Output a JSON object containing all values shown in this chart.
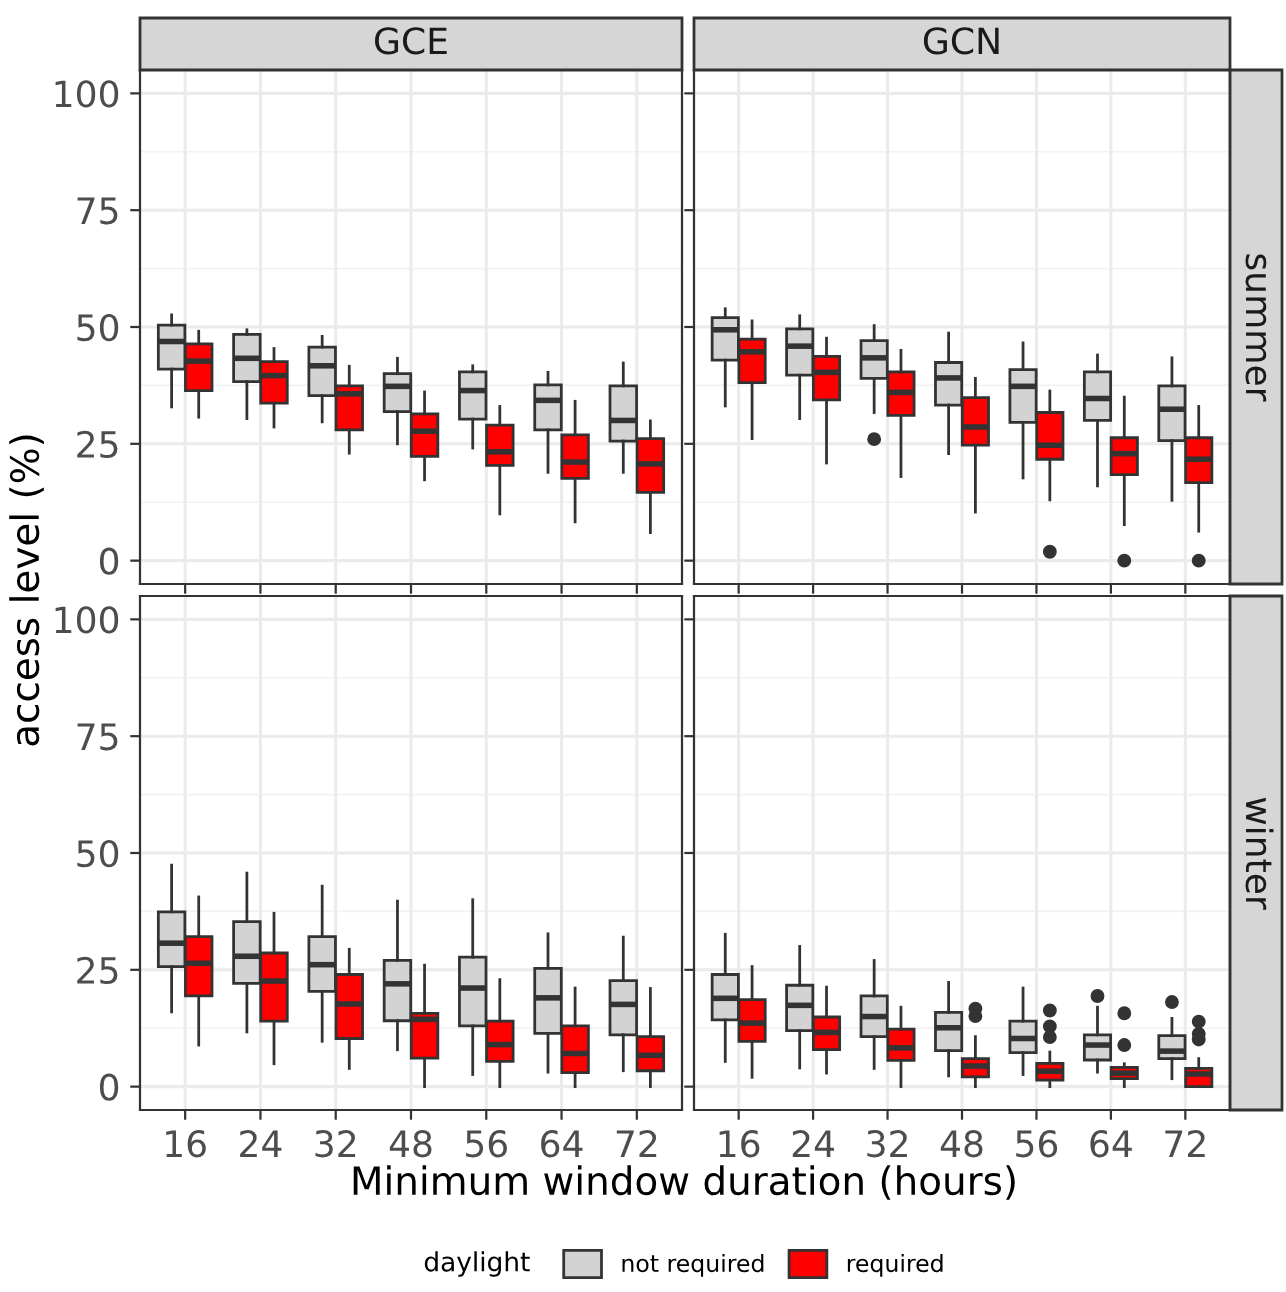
{
  "chart_data": [
    {
      "type": "box",
      "title": "GCE",
      "ylabel": "access level (%)",
      "legend_title": "daylight",
      "legend": "bottom",
      "categories": [
        "16",
        "24",
        "32",
        "48",
        "56",
        "64",
        "72"
      ],
      "ylim": [
        -5,
        105
      ],
      "yticks": [
        0,
        25,
        50,
        75,
        100
      ],
      "grid": true,
      "tick_labels": "y",
      "series": [
        {
          "name": "not required",
          "color": "#d3d3d3",
          "boxes": [
            {
              "low": 32.9,
              "q1": 41,
              "median": 46.9,
              "q3": 50.4,
              "high": 52.6
            },
            {
              "low": 30.4,
              "q1": 38.3,
              "median": 43.3,
              "q3": 48.4,
              "high": 49.4
            },
            {
              "low": 29.7,
              "q1": 35.3,
              "median": 41.7,
              "q3": 45.7,
              "high": 48
            },
            {
              "low": 25,
              "q1": 31.9,
              "median": 37.3,
              "q3": 40,
              "high": 43.3
            },
            {
              "low": 24.1,
              "q1": 30.3,
              "median": 36.4,
              "q3": 40.4,
              "high": 41.7
            },
            {
              "low": 18.9,
              "q1": 28,
              "median": 34.3,
              "q3": 37.6,
              "high": 40.3
            },
            {
              "low": 18.9,
              "q1": 25.6,
              "median": 30,
              "q3": 37.4,
              "high": 42.3
            }
          ]
        },
        {
          "name": "required",
          "color": "#ff0000",
          "boxes": [
            {
              "low": 30.7,
              "q1": 36.4,
              "median": 42.7,
              "q3": 46.4,
              "high": 49.1
            },
            {
              "low": 28.6,
              "q1": 33.7,
              "median": 39.6,
              "q3": 42.6,
              "high": 45.4
            },
            {
              "low": 23,
              "q1": 28,
              "median": 35.7,
              "q3": 37.4,
              "high": 41.6
            },
            {
              "low": 17.3,
              "q1": 22.3,
              "median": 27.7,
              "q3": 31.4,
              "high": 36.1
            },
            {
              "low": 10,
              "q1": 20.4,
              "median": 23.3,
              "q3": 29,
              "high": 33
            },
            {
              "low": 8.3,
              "q1": 17.6,
              "median": 21.1,
              "q3": 26.9,
              "high": 34.1
            },
            {
              "low": 6,
              "q1": 14.6,
              "median": 20.7,
              "q3": 26.1,
              "high": 29.9
            }
          ]
        }
      ]
    },
    {
      "type": "box",
      "title": "GCN",
      "y2label": "summer",
      "categories": [
        "16",
        "24",
        "32",
        "48",
        "56",
        "64",
        "72"
      ],
      "ylim": [
        -5,
        105
      ],
      "yticks": [
        0,
        25,
        50,
        75,
        100
      ],
      "grid": true,
      "tick_labels": false,
      "series": [
        {
          "color": "#d3d3d3",
          "boxes": [
            {
              "low": 33.1,
              "q1": 42.9,
              "median": 49.4,
              "q3": 52,
              "high": 53.9
            },
            {
              "low": 30.4,
              "q1": 39.7,
              "median": 45.9,
              "q3": 49.6,
              "high": 52.4
            },
            {
              "low": 31.7,
              "q1": 39,
              "median": 43.4,
              "q3": 47.1,
              "high": 50.3,
              "outliers": [
                26
              ]
            },
            {
              "low": 22.9,
              "q1": 33.3,
              "median": 39.1,
              "q3": 42.4,
              "high": 48.7
            },
            {
              "low": 17.7,
              "q1": 29.6,
              "median": 37.3,
              "q3": 40.9,
              "high": 46.6
            },
            {
              "low": 16,
              "q1": 30,
              "median": 34.7,
              "q3": 40.4,
              "high": 44
            },
            {
              "low": 12.9,
              "q1": 25.7,
              "median": 32.4,
              "q3": 37.4,
              "high": 43.4
            }
          ]
        },
        {
          "color": "#ff0000",
          "boxes": [
            {
              "low": 26.1,
              "q1": 38.1,
              "median": 44.7,
              "q3": 47.4,
              "high": 51.3
            },
            {
              "low": 20.9,
              "q1": 34.4,
              "median": 40.3,
              "q3": 43.7,
              "high": 47.6
            },
            {
              "low": 18,
              "q1": 31.1,
              "median": 36,
              "q3": 40.4,
              "high": 45
            },
            {
              "low": 10.4,
              "q1": 24.7,
              "median": 28.6,
              "q3": 34.9,
              "high": 39
            },
            {
              "low": 13,
              "q1": 21.7,
              "median": 24.7,
              "q3": 31.7,
              "high": 36.3,
              "outliers": [
                1.9
              ]
            },
            {
              "low": 7.7,
              "q1": 18.4,
              "median": 22.9,
              "q3": 26.3,
              "high": 35,
              "outliers": [
                0
              ]
            },
            {
              "low": 6.3,
              "q1": 16.7,
              "median": 21.7,
              "q3": 26.3,
              "high": 33,
              "outliers": [
                0
              ]
            }
          ]
        }
      ]
    },
    {
      "type": "box",
      "categories": [
        "16",
        "24",
        "32",
        "48",
        "56",
        "64",
        "72"
      ],
      "ylim": [
        -5,
        105
      ],
      "yticks": [
        0,
        25,
        50,
        75,
        100
      ],
      "grid": true,
      "series": [
        {
          "color": "#d3d3d3",
          "boxes": [
            {
              "low": 16,
              "q1": 25.7,
              "median": 30.7,
              "q3": 37.4,
              "high": 47.4
            },
            {
              "low": 11.7,
              "q1": 22.1,
              "median": 27.9,
              "q3": 35.3,
              "high": 45.7
            },
            {
              "low": 9.7,
              "q1": 20.4,
              "median": 26.1,
              "q3": 32.1,
              "high": 42.9
            },
            {
              "low": 7.9,
              "q1": 14.1,
              "median": 22,
              "q3": 27,
              "high": 39.7
            },
            {
              "low": 2.6,
              "q1": 13,
              "median": 21.1,
              "q3": 27.7,
              "high": 40
            },
            {
              "low": 3.1,
              "q1": 11.4,
              "median": 19,
              "q3": 25.3,
              "high": 32.7
            },
            {
              "low": 3.4,
              "q1": 11.1,
              "median": 17.6,
              "q3": 22.7,
              "high": 32
            }
          ]
        },
        {
          "color": "#ff0000",
          "boxes": [
            {
              "low": 8.9,
              "q1": 19.4,
              "median": 26.4,
              "q3": 32.1,
              "high": 40.6
            },
            {
              "low": 4.9,
              "q1": 14,
              "median": 22.6,
              "q3": 28.6,
              "high": 37.1
            },
            {
              "low": 3.9,
              "q1": 10.3,
              "median": 17.7,
              "q3": 24,
              "high": 29.4
            },
            {
              "low": 0,
              "q1": 6.1,
              "median": 14.4,
              "q3": 15.7,
              "high": 26
            },
            {
              "low": 0,
              "q1": 5.4,
              "median": 9,
              "q3": 14,
              "high": 22.9
            },
            {
              "low": 0,
              "q1": 3,
              "median": 7.1,
              "q3": 13,
              "high": 21.1
            },
            {
              "low": 0,
              "q1": 3.4,
              "median": 6.7,
              "q3": 10.7,
              "high": 21
            }
          ]
        }
      ]
    },
    {
      "type": "box",
      "y2label": "winter",
      "xlabel": "Minimum window duration (hours)",
      "categories": [
        "16",
        "24",
        "32",
        "48",
        "56",
        "64",
        "72"
      ],
      "ylim": [
        -5,
        105
      ],
      "yticks": [
        0,
        25,
        50,
        75,
        100
      ],
      "grid": true,
      "tick_labels": "x",
      "series": [
        {
          "color": "#d3d3d3",
          "boxes": [
            {
              "low": 5.4,
              "q1": 14.3,
              "median": 18.9,
              "q3": 24,
              "high": 32.6
            },
            {
              "low": 4,
              "q1": 12,
              "median": 17.4,
              "q3": 21.7,
              "high": 30
            },
            {
              "low": 3.9,
              "q1": 10.7,
              "median": 15,
              "q3": 19.4,
              "high": 27
            },
            {
              "low": 2.3,
              "q1": 7.7,
              "median": 12.6,
              "q3": 15.9,
              "high": 22.3
            },
            {
              "low": 2.6,
              "q1": 7.3,
              "median": 10.3,
              "q3": 14,
              "high": 21.1
            },
            {
              "low": 3.1,
              "q1": 5.7,
              "median": 8.9,
              "q3": 11.1,
              "high": 17,
              "outliers": [
                19.4
              ]
            },
            {
              "low": 1.7,
              "q1": 6,
              "median": 7.6,
              "q3": 10.9,
              "high": 14.6,
              "outliers": [
                18.1
              ]
            }
          ]
        },
        {
          "color": "#ff0000",
          "boxes": [
            {
              "low": 2,
              "q1": 9.7,
              "median": 13.6,
              "q3": 18.6,
              "high": 25.7
            },
            {
              "low": 2.9,
              "q1": 7.9,
              "median": 11.6,
              "q3": 14.9,
              "high": 21.3
            },
            {
              "low": 0,
              "q1": 5.6,
              "median": 8.3,
              "q3": 12.3,
              "high": 17
            },
            {
              "low": 0,
              "q1": 2.1,
              "median": 4.4,
              "q3": 6,
              "high": 10.7,
              "outliers": [
                16.7,
                15.1
              ]
            },
            {
              "low": 0,
              "q1": 1.4,
              "median": 3.3,
              "q3": 5,
              "high": 7.4,
              "outliers": [
                16.3,
                12.9,
                10.6
              ]
            },
            {
              "low": 0,
              "q1": 1.7,
              "median": 2.9,
              "q3": 4.1,
              "high": 4.9,
              "outliers": [
                15.7,
                8.9
              ]
            },
            {
              "low": 0,
              "q1": 0,
              "median": 2.7,
              "q3": 3.9,
              "high": 6,
              "outliers": [
                13.9,
                11.3,
                10.1
              ]
            }
          ]
        }
      ]
    }
  ]
}
